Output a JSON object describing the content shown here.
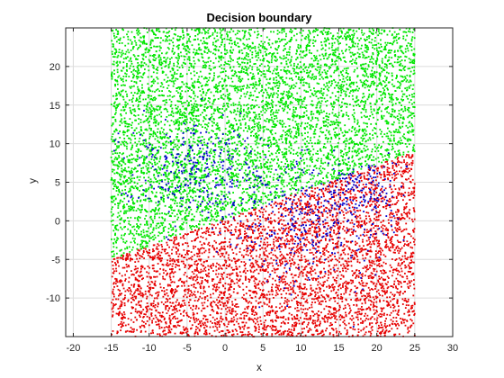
{
  "chart_data": {
    "type": "scatter",
    "title": "Decision boundary",
    "xlabel": "x",
    "ylabel": "y",
    "xlim": [
      -21,
      30
    ],
    "ylim": [
      -15,
      25
    ],
    "xticks": [
      -20,
      -15,
      -10,
      -5,
      0,
      5,
      10,
      15,
      20,
      25,
      30
    ],
    "yticks": [
      -10,
      -5,
      0,
      5,
      10,
      15,
      20
    ],
    "grid": true,
    "data_region": {
      "x": [
        -15,
        25
      ],
      "y": [
        -15,
        25
      ]
    },
    "boundary_line": {
      "points": [
        [
          -15,
          -5
        ],
        [
          25,
          9
        ]
      ]
    },
    "series": [
      {
        "color": "#00e600",
        "region": "above boundary line",
        "approx_points": 5200
      },
      {
        "color": "#e60000",
        "region": "below boundary line",
        "approx_points": 5200
      },
      {
        "color": "#0000cc",
        "clusters": [
          {
            "center": [
              -4,
              7
            ],
            "spread": [
              5,
              3
            ],
            "approx_points": 300
          },
          {
            "center": [
              11,
              0
            ],
            "spread": [
              6,
              4
            ],
            "approx_points": 350
          },
          {
            "center": [
              18,
              4
            ],
            "spread": [
              2.5,
              2
            ],
            "approx_points": 120
          }
        ]
      }
    ]
  }
}
